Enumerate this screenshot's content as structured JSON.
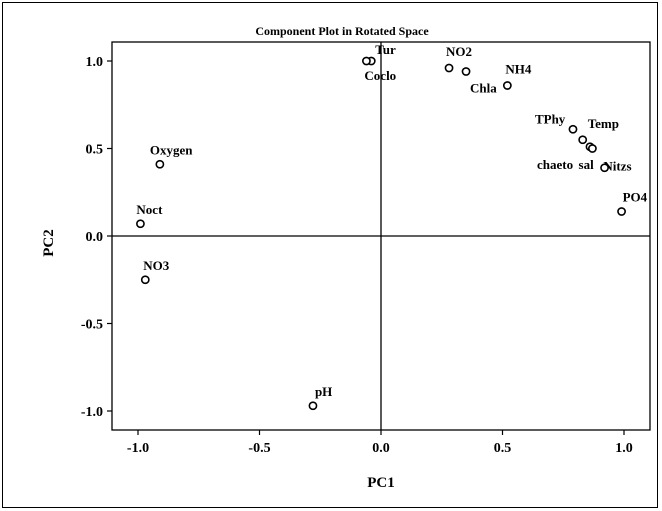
{
  "chart_data": {
    "type": "scatter",
    "title": "Component Plot in Rotated Space",
    "xlabel": "PC1",
    "ylabel": "PC2",
    "xlim": [
      -1.1,
      1.1
    ],
    "ylim": [
      -1.1,
      1.1
    ],
    "x_ticks": [
      {
        "value": -1.0,
        "label": "-1.0"
      },
      {
        "value": -0.5,
        "label": "-0.5"
      },
      {
        "value": 0.0,
        "label": "0.0"
      },
      {
        "value": 0.5,
        "label": "0.5"
      },
      {
        "value": 1.0,
        "label": "1.0"
      }
    ],
    "y_ticks": [
      {
        "value": 1.0,
        "label": "1.0"
      },
      {
        "value": 0.5,
        "label": "0.5"
      },
      {
        "value": 0.0,
        "label": "0.0"
      },
      {
        "value": -0.5,
        "label": "-0.5"
      },
      {
        "value": -1.0,
        "label": "-1.0"
      }
    ],
    "reference_lines": {
      "x": 0.0,
      "y": 0.0
    },
    "grid": false,
    "points": [
      {
        "label": "Tur",
        "x": -0.04,
        "y": 1.0
      },
      {
        "label": "Coclo",
        "x": -0.06,
        "y": 1.0
      },
      {
        "label": "NO2",
        "x": 0.28,
        "y": 0.96
      },
      {
        "label": "Chla",
        "x": 0.35,
        "y": 0.94
      },
      {
        "label": "NH4",
        "x": 0.52,
        "y": 0.86
      },
      {
        "label": "TPhy",
        "x": 0.79,
        "y": 0.61
      },
      {
        "label": "Temp",
        "x": 0.83,
        "y": 0.55
      },
      {
        "label": "chaeto",
        "x": 0.86,
        "y": 0.51
      },
      {
        "label": "Nitzs",
        "x": 0.87,
        "y": 0.5
      },
      {
        "label": "sal",
        "x": 0.92,
        "y": 0.39
      },
      {
        "label": "PO4",
        "x": 0.99,
        "y": 0.14
      },
      {
        "label": "Oxygen",
        "x": -0.91,
        "y": 0.41
      },
      {
        "label": "Noct",
        "x": -0.99,
        "y": 0.07
      },
      {
        "label": "NO3",
        "x": -0.97,
        "y": -0.25
      },
      {
        "label": "pH",
        "x": -0.28,
        "y": -0.97
      }
    ]
  }
}
